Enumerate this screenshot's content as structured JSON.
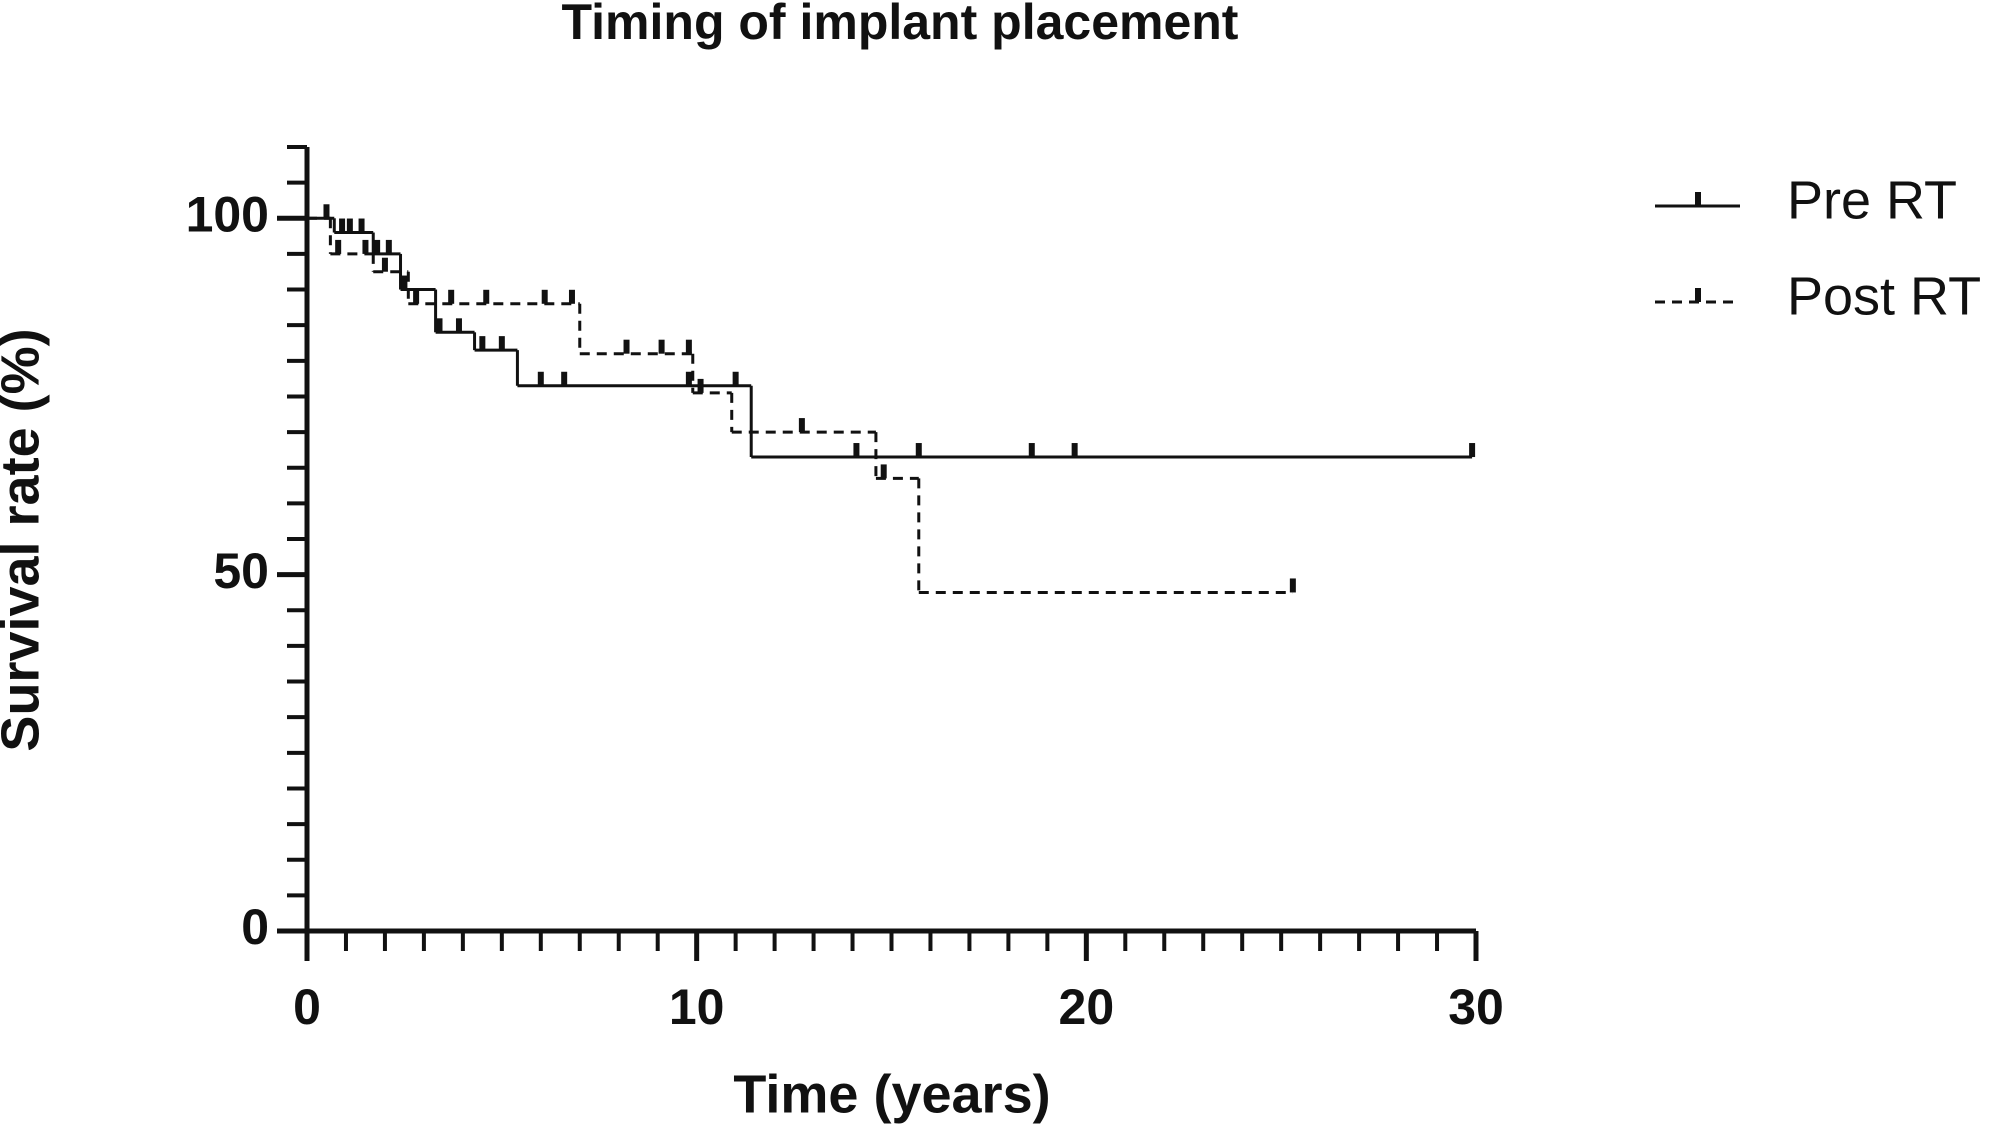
{
  "chart_data": {
    "type": "step",
    "title": "Timing of implant placement",
    "x_label": "Time  (years)",
    "y_label": "Survival rate (%)",
    "xlim": [
      0,
      30
    ],
    "xticks": [
      0,
      10,
      20,
      30
    ],
    "ylim": [
      0,
      110
    ],
    "yticks": [
      0,
      50,
      100
    ],
    "legend": "upper right",
    "series": [
      {
        "name": "Pre RT",
        "color": "#111111",
        "line_style": "solid",
        "x": [
          0,
          0.7,
          1.7,
          2.4,
          3.3,
          4.3,
          5.4,
          11.4
        ],
        "values": [
          100,
          98,
          95,
          90,
          84,
          81.5,
          76.5,
          66.5
        ],
        "censor_x": [
          0.5,
          0.9,
          1.1,
          1.4,
          1.8,
          2.1,
          2.5,
          3.4,
          3.9,
          4.5,
          5.0,
          6.0,
          6.6,
          9.8,
          11.0,
          14.1,
          15.7,
          18.6,
          19.7,
          29.9
        ]
      },
      {
        "name": "Post RT",
        "color": "#111111",
        "line_style": "dashed",
        "x": [
          0,
          0.6,
          1.7,
          2.6,
          7.0,
          9.9,
          10.9,
          14.6,
          15.7
        ],
        "values": [
          100,
          95,
          92.5,
          88,
          81,
          75.5,
          70,
          63.5,
          47.5
        ],
        "censor_x": [
          0.8,
          1.5,
          2.0,
          2.8,
          3.7,
          4.6,
          6.1,
          6.8,
          8.2,
          9.1,
          9.8,
          10.1,
          12.7,
          14.8,
          25.3
        ]
      }
    ]
  }
}
